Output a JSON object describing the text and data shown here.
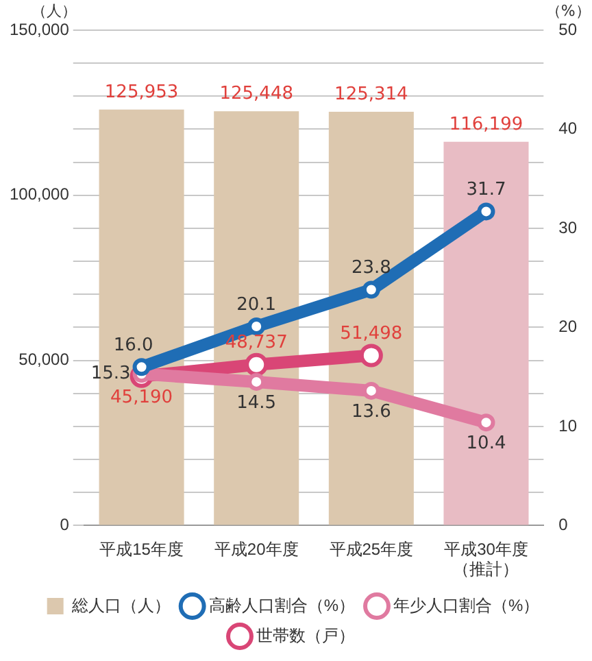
{
  "chart_data": {
    "type": "bar",
    "ylabel": "（人）",
    "y2label": "（%）",
    "categories": [
      "平成15年度",
      "平成20年度",
      "平成25年度",
      "平成30年度（推計）"
    ],
    "series": [
      {
        "name": "総人口（人）",
        "colors": [
          "#dcc8ae",
          "#dcc8ae",
          "#dcc8ae",
          "#e8bcc4"
        ],
        "values": [
          125953,
          125448,
          125314,
          116199
        ],
        "value_labels": [
          "125,953",
          "125,448",
          "125,314",
          "116,199"
        ]
      },
      {
        "name": "高齢人口割合（%）",
        "type": "line",
        "axis": "y2",
        "color": "#1f6db5",
        "values": [
          16.0,
          20.1,
          23.8,
          31.7
        ],
        "value_labels": [
          "16.0",
          "20.1",
          "23.8",
          "31.7"
        ]
      },
      {
        "name": "年少人口割合（%）",
        "type": "line",
        "axis": "y2",
        "color": "#e07aa0",
        "values": [
          15.3,
          14.5,
          13.6,
          10.4
        ],
        "value_labels": [
          "15.3",
          "14.5",
          "13.6",
          "10.4"
        ]
      },
      {
        "name": "世帯数（戸）",
        "type": "line",
        "color": "#d94676",
        "values": [
          45190,
          48737,
          51498,
          null
        ],
        "value_labels": [
          "45,190",
          "48,737",
          "51,498",
          null
        ]
      }
    ],
    "ylim": [
      0,
      150000
    ],
    "yticks": [
      {
        "value": 0,
        "label": "0"
      },
      {
        "value": 10000,
        "label": null
      },
      {
        "value": 20000,
        "label": null
      },
      {
        "value": 30000,
        "label": null
      },
      {
        "value": 40000,
        "label": null
      },
      {
        "value": 50000,
        "label": "50,000"
      },
      {
        "value": 60000,
        "label": null
      },
      {
        "value": 70000,
        "label": null
      },
      {
        "value": 80000,
        "label": null
      },
      {
        "value": 90000,
        "label": null
      },
      {
        "value": 100000,
        "label": "100,000"
      },
      {
        "value": 110000,
        "label": null
      },
      {
        "value": 120000,
        "label": null
      },
      {
        "value": 130000,
        "label": null
      },
      {
        "value": 140000,
        "label": null
      },
      {
        "value": 150000,
        "label": "150,000"
      }
    ],
    "y2lim": [
      0,
      50
    ],
    "y2ticks": [
      0,
      10,
      20,
      30,
      40,
      50
    ],
    "grid": "y",
    "legend": "bottom",
    "marker": "circle",
    "line_style": "solid"
  }
}
